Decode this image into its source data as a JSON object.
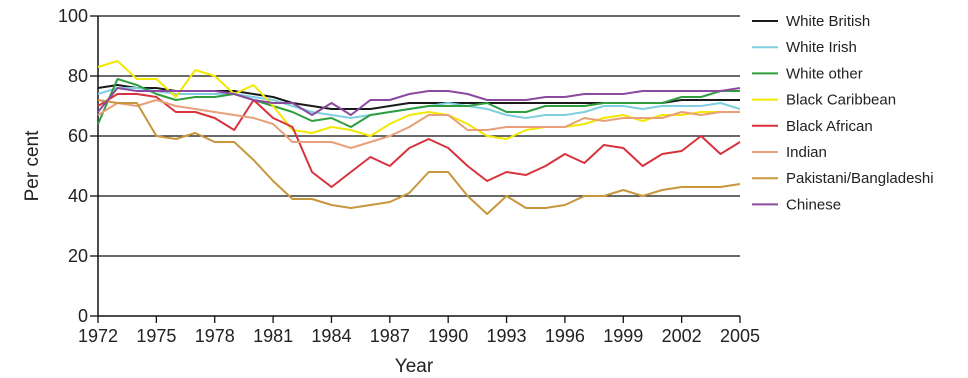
{
  "chart_data": {
    "type": "line",
    "xlabel": "Year",
    "ylabel": "Per cent",
    "xlim": [
      1972,
      2005
    ],
    "ylim": [
      0,
      100
    ],
    "xticks": [
      1972,
      1975,
      1978,
      1981,
      1984,
      1987,
      1990,
      1993,
      1996,
      1999,
      2002,
      2005
    ],
    "yticks": [
      0,
      20,
      40,
      60,
      80,
      100
    ],
    "grid": "horizontal",
    "legend_position": "right",
    "x": [
      1972,
      1973,
      1974,
      1975,
      1976,
      1977,
      1978,
      1979,
      1980,
      1981,
      1982,
      1983,
      1984,
      1985,
      1986,
      1987,
      1988,
      1989,
      1990,
      1991,
      1992,
      1993,
      1994,
      1995,
      1996,
      1997,
      1998,
      1999,
      2000,
      2001,
      2002,
      2003,
      2004,
      2005
    ],
    "series": [
      {
        "name": "White British",
        "color": "#1a1a1a",
        "values": [
          76,
          77,
          76,
          76,
          75,
          75,
          75,
          75,
          74,
          73,
          71,
          70,
          69,
          69,
          69,
          70,
          71,
          71,
          71,
          71,
          71,
          71,
          71,
          71,
          71,
          71,
          71,
          71,
          71,
          71,
          72,
          72,
          72,
          72
        ]
      },
      {
        "name": "White Irish",
        "color": "#7fcfe0",
        "values": [
          74,
          76,
          76,
          75,
          74,
          74,
          74,
          74,
          73,
          72,
          70,
          68,
          67,
          66,
          67,
          68,
          69,
          70,
          71,
          70,
          69,
          67,
          66,
          67,
          67,
          68,
          70,
          70,
          69,
          70,
          70,
          70,
          71,
          69
        ]
      },
      {
        "name": "White other",
        "color": "#2e9e3e",
        "values": [
          64,
          79,
          77,
          74,
          72,
          73,
          73,
          74,
          72,
          70,
          68,
          65,
          66,
          63,
          67,
          68,
          69,
          70,
          70,
          70,
          71,
          68,
          68,
          70,
          70,
          70,
          71,
          71,
          71,
          71,
          73,
          73,
          75,
          75
        ]
      },
      {
        "name": "Black Caribbean",
        "color": "#f2e800",
        "values": [
          83,
          85,
          79,
          79,
          73,
          82,
          80,
          74,
          77,
          70,
          62,
          61,
          63,
          62,
          60,
          64,
          67,
          68,
          67,
          64,
          60,
          59,
          62,
          63,
          63,
          64,
          66,
          67,
          65,
          67,
          67,
          68,
          68,
          68
        ]
      },
      {
        "name": "Black African",
        "color": "#d8323c",
        "values": [
          70,
          74,
          74,
          73,
          68,
          68,
          66,
          62,
          72,
          66,
          63,
          48,
          43,
          48,
          53,
          50,
          56,
          59,
          56,
          50,
          45,
          48,
          47,
          50,
          54,
          51,
          57,
          56,
          50,
          54,
          55,
          60,
          54,
          58
        ]
      },
      {
        "name": "Indian",
        "color": "#e8a07a",
        "values": [
          67,
          71,
          70,
          72,
          70,
          69,
          68,
          67,
          66,
          64,
          58,
          58,
          58,
          56,
          58,
          60,
          63,
          67,
          67,
          62,
          62,
          63,
          63,
          63,
          63,
          66,
          65,
          66,
          66,
          66,
          68,
          67,
          68,
          68
        ]
      },
      {
        "name": "Pakistani/Bangladeshi",
        "color": "#c8963c",
        "values": [
          72,
          71,
          71,
          60,
          59,
          61,
          58,
          58,
          52,
          45,
          39,
          39,
          37,
          36,
          37,
          38,
          41,
          48,
          48,
          40,
          34,
          40,
          36,
          36,
          37,
          40,
          40,
          42,
          40,
          42,
          43,
          43,
          43,
          44
        ]
      },
      {
        "name": "Chinese",
        "color": "#8a4a9e",
        "values": [
          68,
          76,
          75,
          75,
          75,
          75,
          75,
          74,
          72,
          71,
          71,
          67,
          71,
          67,
          72,
          72,
          74,
          75,
          75,
          74,
          72,
          72,
          72,
          73,
          73,
          74,
          74,
          74,
          75,
          75,
          75,
          75,
          75,
          76
        ]
      }
    ]
  }
}
